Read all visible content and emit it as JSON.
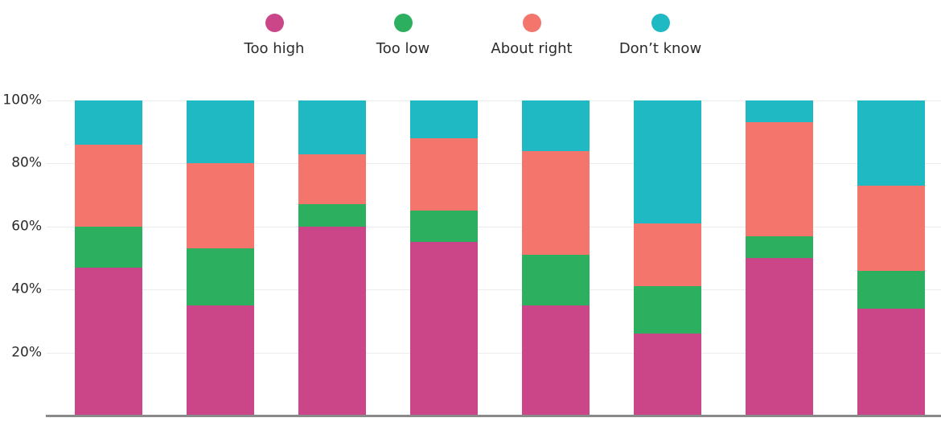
{
  "chart_data": {
    "type": "bar",
    "stacked": true,
    "percent": true,
    "title": "",
    "xlabel": "",
    "ylabel": "",
    "categories": [
      "",
      "",
      "",
      "",
      "",
      "",
      "",
      ""
    ],
    "series": [
      {
        "name": "Too high",
        "color": "#cb4688",
        "values": [
          47,
          35,
          60,
          55,
          35,
          26,
          50,
          34
        ]
      },
      {
        "name": "Too low",
        "color": "#2cb05f",
        "values": [
          13,
          18,
          7,
          10,
          16,
          15,
          7,
          12
        ]
      },
      {
        "name": "About right",
        "color": "#f3756b",
        "values": [
          26,
          27,
          16,
          23,
          33,
          20,
          36,
          27
        ]
      },
      {
        "name": "Don’t know",
        "color": "#1eb9c3",
        "values": [
          14,
          20,
          17,
          12,
          16,
          39,
          7,
          27
        ]
      }
    ],
    "yticks": [
      {
        "value": 100,
        "label": "100%"
      },
      {
        "value": 80,
        "label": "80%"
      },
      {
        "value": 60,
        "label": "60%"
      },
      {
        "value": 40,
        "label": "40%"
      },
      {
        "value": 20,
        "label": "20%"
      }
    ],
    "ylim": [
      0,
      100
    ],
    "grid": true,
    "legend_position": "top",
    "colors": {
      "axis_line": "#8a8a8a",
      "gridline": "#ececec",
      "text": "#2b2b2b",
      "background": "#ffffff"
    }
  }
}
